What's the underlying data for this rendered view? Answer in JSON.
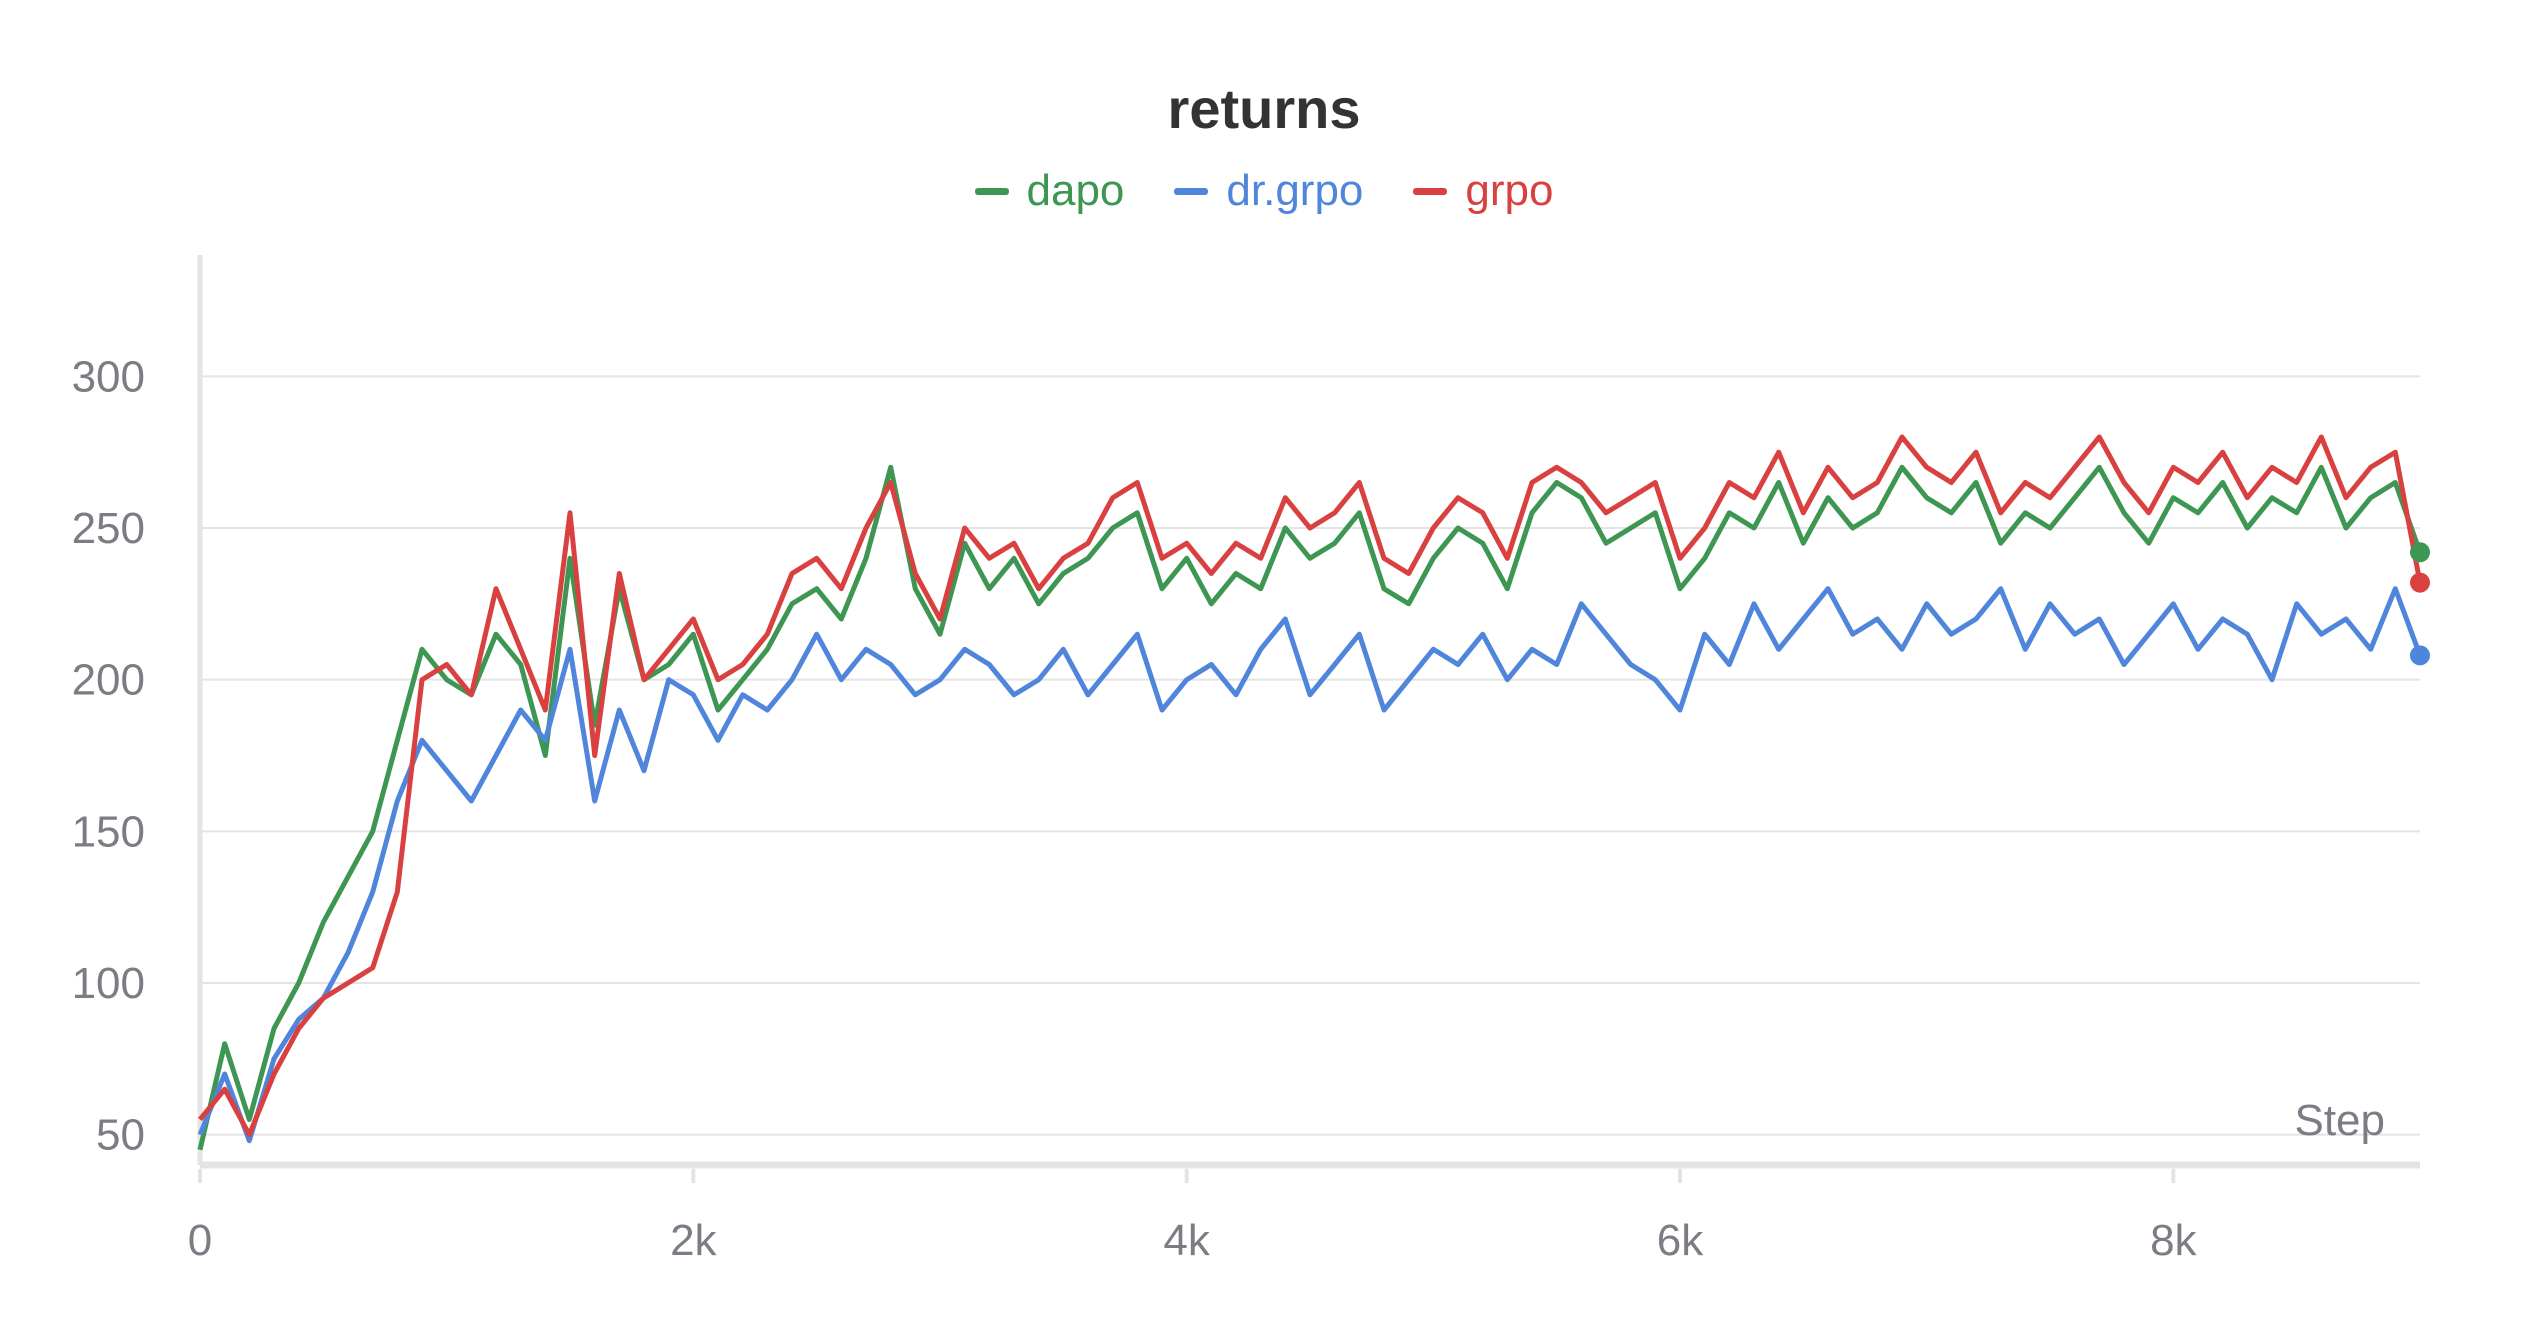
{
  "chart_data": {
    "type": "line",
    "title": "returns",
    "xlabel": "Step",
    "ylabel": "",
    "xlim": [
      0,
      9000
    ],
    "ylim": [
      40,
      340
    ],
    "x_ticks": [
      {
        "v": 0,
        "label": "0"
      },
      {
        "v": 2000,
        "label": "2k"
      },
      {
        "v": 4000,
        "label": "4k"
      },
      {
        "v": 6000,
        "label": "6k"
      },
      {
        "v": 8000,
        "label": "8k"
      }
    ],
    "y_ticks": [
      {
        "v": 50,
        "label": "50"
      },
      {
        "v": 100,
        "label": "100"
      },
      {
        "v": 150,
        "label": "150"
      },
      {
        "v": 200,
        "label": "200"
      },
      {
        "v": 250,
        "label": "250"
      },
      {
        "v": 300,
        "label": "300"
      }
    ],
    "grid": true,
    "legend_position": "top-center",
    "x": [
      0,
      100,
      200,
      300,
      400,
      500,
      600,
      700,
      800,
      900,
      1000,
      1100,
      1200,
      1300,
      1400,
      1500,
      1600,
      1700,
      1800,
      1900,
      2000,
      2100,
      2200,
      2300,
      2400,
      2500,
      2600,
      2700,
      2800,
      2900,
      3000,
      3100,
      3200,
      3300,
      3400,
      3500,
      3600,
      3700,
      3800,
      3900,
      4000,
      4100,
      4200,
      4300,
      4400,
      4500,
      4600,
      4700,
      4800,
      4900,
      5000,
      5100,
      5200,
      5300,
      5400,
      5500,
      5600,
      5700,
      5800,
      5900,
      6000,
      6100,
      6200,
      6300,
      6400,
      6500,
      6600,
      6700,
      6800,
      6900,
      7000,
      7100,
      7200,
      7300,
      7400,
      7500,
      7600,
      7700,
      7800,
      7900,
      8000,
      8100,
      8200,
      8300,
      8400,
      8500,
      8600,
      8700,
      8800,
      8900,
      9000
    ],
    "series": [
      {
        "name": "dapo",
        "color": "#3d9652",
        "values": [
          45,
          80,
          55,
          85,
          100,
          120,
          135,
          150,
          180,
          210,
          200,
          195,
          215,
          205,
          175,
          240,
          185,
          230,
          200,
          205,
          215,
          190,
          200,
          210,
          225,
          230,
          220,
          240,
          270,
          230,
          215,
          245,
          230,
          240,
          225,
          235,
          240,
          250,
          255,
          230,
          240,
          225,
          235,
          230,
          250,
          240,
          245,
          255,
          230,
          225,
          240,
          250,
          245,
          230,
          255,
          265,
          260,
          245,
          250,
          255,
          230,
          240,
          255,
          250,
          265,
          245,
          260,
          250,
          255,
          270,
          260,
          255,
          265,
          245,
          255,
          250,
          260,
          270,
          255,
          245,
          260,
          255,
          265,
          250,
          260,
          255,
          270,
          250,
          260,
          265,
          242
        ]
      },
      {
        "name": "dr.grpo",
        "color": "#4f85db",
        "values": [
          50,
          70,
          48,
          75,
          88,
          95,
          110,
          130,
          160,
          180,
          170,
          160,
          175,
          190,
          180,
          210,
          160,
          190,
          170,
          200,
          195,
          180,
          195,
          190,
          200,
          215,
          200,
          210,
          205,
          195,
          200,
          210,
          205,
          195,
          200,
          210,
          195,
          205,
          215,
          190,
          200,
          205,
          195,
          210,
          220,
          195,
          205,
          215,
          190,
          200,
          210,
          205,
          215,
          200,
          210,
          205,
          225,
          215,
          205,
          200,
          190,
          215,
          205,
          225,
          210,
          220,
          230,
          215,
          220,
          210,
          225,
          215,
          220,
          230,
          210,
          225,
          215,
          220,
          205,
          215,
          225,
          210,
          220,
          215,
          200,
          225,
          215,
          220,
          210,
          230,
          208
        ]
      },
      {
        "name": "grpo",
        "color": "#d94141",
        "values": [
          55,
          65,
          50,
          70,
          85,
          95,
          100,
          105,
          130,
          200,
          205,
          195,
          230,
          210,
          190,
          255,
          175,
          235,
          200,
          210,
          220,
          200,
          205,
          215,
          235,
          240,
          230,
          250,
          265,
          235,
          220,
          250,
          240,
          245,
          230,
          240,
          245,
          260,
          265,
          240,
          245,
          235,
          245,
          240,
          260,
          250,
          255,
          265,
          240,
          235,
          250,
          260,
          255,
          240,
          265,
          270,
          265,
          255,
          260,
          265,
          240,
          250,
          265,
          260,
          275,
          255,
          270,
          260,
          265,
          280,
          270,
          265,
          275,
          255,
          265,
          260,
          270,
          280,
          265,
          255,
          270,
          265,
          275,
          260,
          270,
          265,
          280,
          260,
          270,
          275,
          232
        ]
      }
    ]
  }
}
